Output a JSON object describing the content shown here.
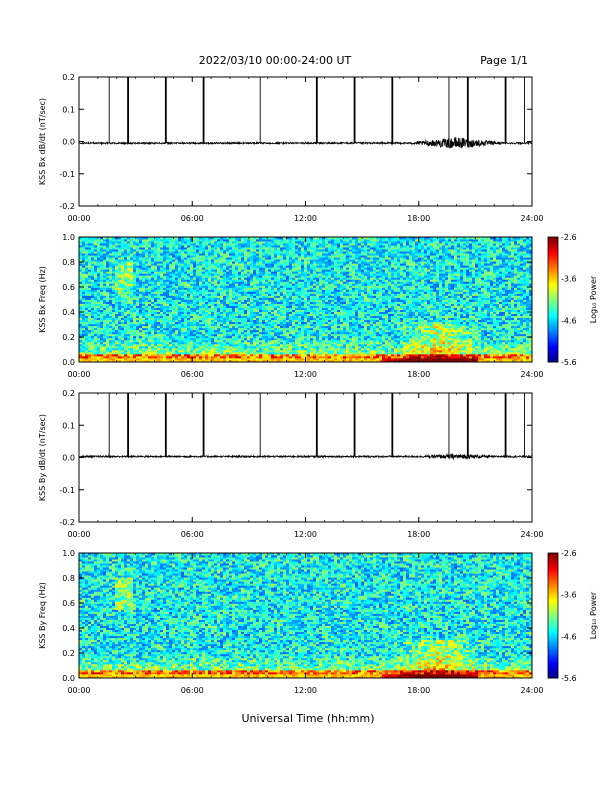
{
  "header": {
    "date_range": "2022/03/10  00:00-24:00 UT",
    "page": "Page 1/1"
  },
  "footer": {
    "xlabel": "Universal Time (hh:mm)"
  },
  "chart_data": [
    {
      "type": "line",
      "ylabel": "KSS Bx dB/dt (nT/sec)",
      "xlim": [
        0,
        24
      ],
      "ylim": [
        -0.2,
        0.2
      ],
      "x_ticks": [
        "00:00",
        "06:00",
        "12:00",
        "18:00",
        "24:00"
      ],
      "y_ticks": [
        "-0.2",
        "-0.1",
        "0.0",
        "0.1",
        "0.2"
      ],
      "baseline": -0.005,
      "spikes_hours": [
        1.6,
        2.6,
        4.6,
        6.6,
        9.6,
        12.6,
        14.6,
        16.6,
        19.6,
        20.6,
        22.6,
        23.6
      ],
      "disturbed_interval_hours": [
        17.5,
        22.5
      ],
      "noise_peak": 0.04
    },
    {
      "type": "heatmap",
      "ylabel": "KSS Bx Freq (Hz)",
      "xlim": [
        0,
        24
      ],
      "ylim": [
        0,
        1.0
      ],
      "x_ticks": [
        "00:00",
        "06:00",
        "12:00",
        "18:00",
        "24:00"
      ],
      "y_ticks": [
        "0.0",
        "0.2",
        "0.4",
        "0.6",
        "0.8",
        "1.0"
      ],
      "colorbar": {
        "label": "Log₁₀ Power",
        "range": [
          -5.6,
          -2.6
        ],
        "ticks": [
          "-2.6",
          "-3.6",
          "-4.6",
          "-5.6"
        ]
      }
    },
    {
      "type": "line",
      "ylabel": "KSS By dB/dt (nT/sec)",
      "xlim": [
        0,
        24
      ],
      "ylim": [
        -0.2,
        0.2
      ],
      "x_ticks": [
        "00:00",
        "06:00",
        "12:00",
        "18:00",
        "24:00"
      ],
      "y_ticks": [
        "-0.2",
        "-0.1",
        "0.0",
        "0.1",
        "0.2"
      ],
      "baseline": 0.003,
      "spikes_hours": [
        1.6,
        2.6,
        4.6,
        6.6,
        9.6,
        12.6,
        14.6,
        16.6,
        19.6,
        20.6,
        22.6,
        23.6
      ],
      "disturbed_interval_hours": [
        18.0,
        22.0
      ],
      "noise_peak": 0.015
    },
    {
      "type": "heatmap",
      "ylabel": "KSS By Freq (Hz)",
      "xlim": [
        0,
        24
      ],
      "ylim": [
        0,
        1.0
      ],
      "x_ticks": [
        "00:00",
        "06:00",
        "12:00",
        "18:00",
        "24:00"
      ],
      "y_ticks": [
        "0.0",
        "0.2",
        "0.4",
        "0.6",
        "0.8",
        "1.0"
      ],
      "colorbar": {
        "label": "Log₁₀ Power",
        "range": [
          -5.6,
          -2.6
        ],
        "ticks": [
          "-2.6",
          "-3.6",
          "-4.6",
          "-5.6"
        ]
      }
    }
  ]
}
